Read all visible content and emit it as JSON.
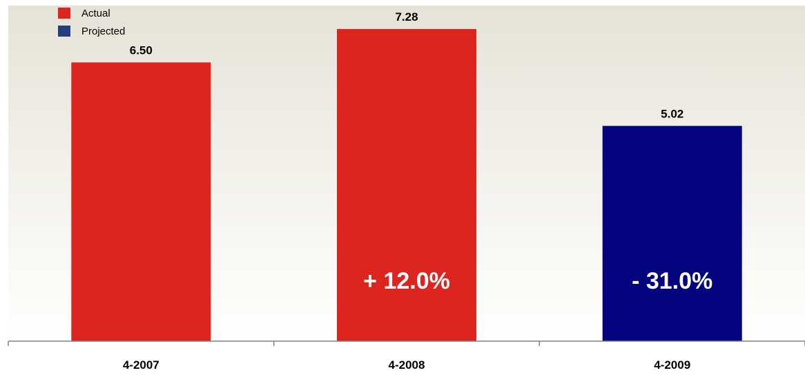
{
  "chart_data": {
    "type": "bar",
    "categories": [
      "4-2007",
      "4-2008",
      "4-2009"
    ],
    "values": [
      6.5,
      7.28,
      5.02
    ],
    "value_labels": [
      "6.50",
      "7.28",
      "5.02"
    ],
    "series_by_bar": [
      "Actual",
      "Actual",
      "Projected"
    ],
    "annotations": [
      "",
      "+ 12.0%",
      "- 31.0%"
    ],
    "ylim": [
      0,
      8
    ],
    "grid": false,
    "legend_placement": "top-left",
    "legend": [
      {
        "name": "Actual",
        "color": "#dc251e"
      },
      {
        "name": "Projected",
        "color": "#233e7a"
      }
    ],
    "colors": {
      "actual_bar": "#dc251e",
      "projected_bar": "#04047f",
      "annotation_text": "#ffffff"
    }
  }
}
